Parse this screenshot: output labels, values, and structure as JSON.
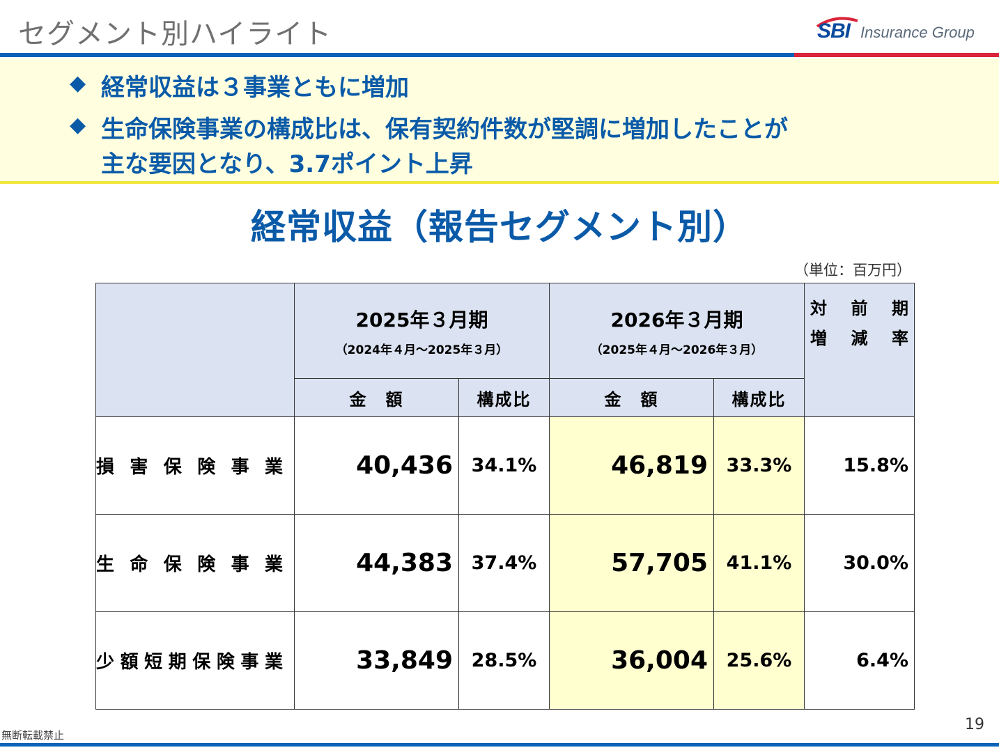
{
  "header": {
    "title": "セグメント別ハイライト",
    "logo_sbi": "SBI",
    "logo_group": "Insurance Group"
  },
  "highlights": {
    "bullet": "◆",
    "line1": "経常収益は３事業ともに増加",
    "line2a": "生命保険事業の構成比は、保有契約件数が堅調に増加したことが",
    "line2b": "主な要因となり、3.7ポイント上昇"
  },
  "section_title": "経常収益（報告セグメント別）",
  "unit": "（単位：百万円）",
  "table": {
    "periods": [
      {
        "label": "2025年３月期",
        "range": "（2024年４月～2025年３月）"
      },
      {
        "label": "2026年３月期",
        "range": "（2025年４月～2026年３月）"
      }
    ],
    "amount_header": "金　額",
    "ratio_header": "構成比",
    "yoy_header": [
      "対",
      "前",
      "期",
      "増",
      "減",
      "率"
    ],
    "rows": [
      {
        "segment": "損害保険事業",
        "amt_2025": "40,436",
        "pct_2025": "34.1%",
        "amt_2026": "46,819",
        "pct_2026": "33.3%",
        "yoy": "15.8%"
      },
      {
        "segment": "生命保険事業",
        "amt_2025": "44,383",
        "pct_2025": "37.4%",
        "amt_2026": "57,705",
        "pct_2026": "41.1%",
        "yoy": "30.0%"
      },
      {
        "segment": "少額短期保険事業",
        "amt_2025": "33,849",
        "pct_2025": "28.5%",
        "amt_2026": "36,004",
        "pct_2026": "25.6%",
        "yoy": "6.4%"
      }
    ]
  },
  "footer": {
    "page_number": "19",
    "note": "無断転載禁止"
  },
  "colors": {
    "brand_blue": "#0a5aa8",
    "accent_red": "#d9243a",
    "header_fill": "#dbe3f2",
    "highlight_fill": "#ffffd0"
  }
}
